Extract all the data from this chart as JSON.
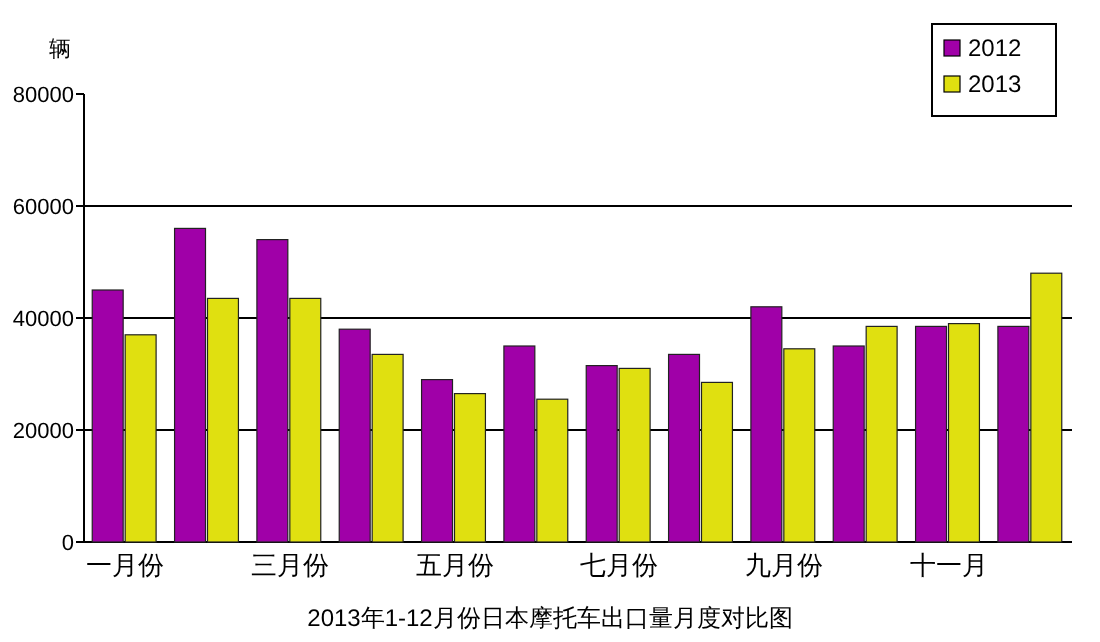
{
  "chart_data": {
    "type": "bar",
    "title": "2013年1-12月份日本摩托车出口量月度对比图",
    "ylabel": "辆",
    "categories": [
      "一月份",
      null,
      "三月份",
      null,
      "五月份",
      null,
      "七月份",
      null,
      "九月份",
      null,
      "十一月",
      null
    ],
    "series": [
      {
        "name": "2012",
        "color": "#a000a8",
        "values": [
          45000,
          56000,
          54000,
          38000,
          29000,
          35000,
          31500,
          33500,
          42000,
          35000,
          38500,
          38500
        ]
      },
      {
        "name": "2013",
        "color": "#e0e010",
        "values": [
          37000,
          43500,
          43500,
          33500,
          26500,
          25500,
          31000,
          28500,
          34500,
          38500,
          39000,
          48000
        ]
      }
    ],
    "ylim": [
      0,
      80000
    ],
    "yticks": [
      0,
      20000,
      40000,
      60000,
      80000
    ],
    "grid": "y",
    "legend": "top right"
  }
}
